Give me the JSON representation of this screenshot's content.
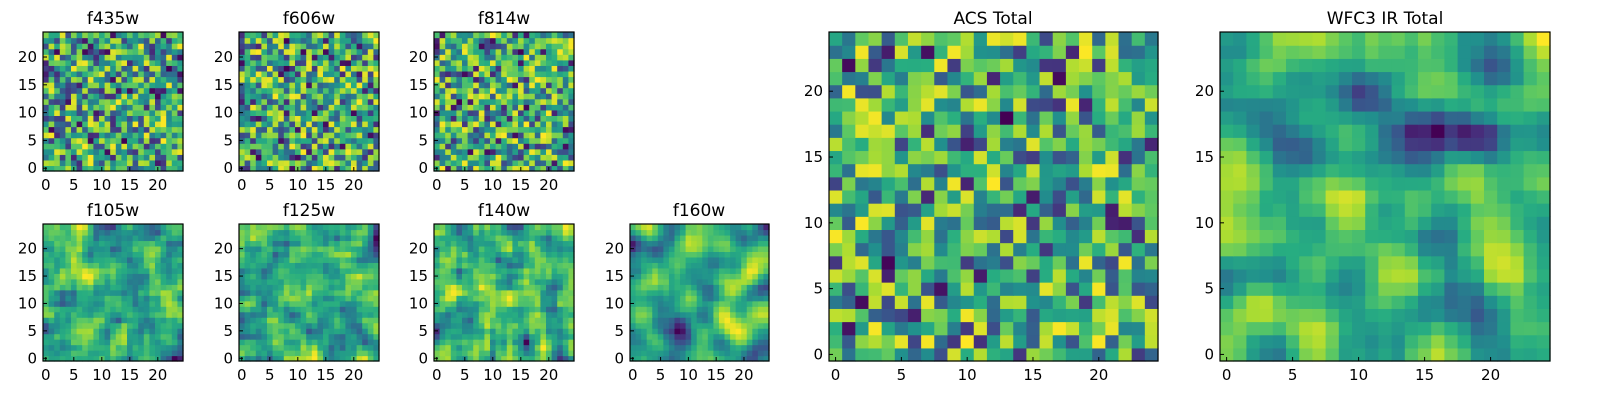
{
  "chart_data": [
    {
      "type": "heatmap",
      "title": "f435w",
      "grid_size": 25,
      "seed": 11,
      "smooth": 0,
      "xticks": [
        "0",
        "5",
        "10",
        "15",
        "20"
      ],
      "yticks": [
        "0",
        "5",
        "10",
        "15",
        "20"
      ],
      "colormap": "viridis"
    },
    {
      "type": "heatmap",
      "title": "f606w",
      "grid_size": 25,
      "seed": 23,
      "smooth": 0,
      "xticks": [
        "0",
        "5",
        "10",
        "15",
        "20"
      ],
      "yticks": [
        "0",
        "5",
        "10",
        "15",
        "20"
      ],
      "colormap": "viridis"
    },
    {
      "type": "heatmap",
      "title": "f814w",
      "grid_size": 25,
      "seed": 37,
      "smooth": 0,
      "xticks": [
        "0",
        "5",
        "10",
        "15",
        "20"
      ],
      "yticks": [
        "0",
        "5",
        "10",
        "15",
        "20"
      ],
      "colormap": "viridis"
    },
    {
      "type": "heatmap",
      "title": "f105w",
      "grid_size": 25,
      "seed": 41,
      "smooth": 1,
      "xticks": [
        "0",
        "5",
        "10",
        "15",
        "20"
      ],
      "yticks": [
        "0",
        "5",
        "10",
        "15",
        "20"
      ],
      "colormap": "viridis"
    },
    {
      "type": "heatmap",
      "title": "f125w",
      "grid_size": 25,
      "seed": 53,
      "smooth": 1,
      "xticks": [
        "0",
        "5",
        "10",
        "15",
        "20"
      ],
      "yticks": [
        "0",
        "5",
        "10",
        "15",
        "20"
      ],
      "colormap": "viridis"
    },
    {
      "type": "heatmap",
      "title": "f140w",
      "grid_size": 25,
      "seed": 67,
      "smooth": 1,
      "xticks": [
        "0",
        "5",
        "10",
        "15",
        "20"
      ],
      "yticks": [
        "0",
        "5",
        "10",
        "15",
        "20"
      ],
      "colormap": "viridis"
    },
    {
      "type": "heatmap",
      "title": "f160w",
      "grid_size": 25,
      "seed": 79,
      "smooth": 2,
      "xticks": [
        "0",
        "5",
        "10",
        "15",
        "20"
      ],
      "yticks": [
        "0",
        "5",
        "10",
        "15",
        "20"
      ],
      "colormap": "viridis"
    },
    {
      "type": "heatmap",
      "title": "ACS Total",
      "grid_size": 25,
      "seed": 83,
      "smooth": 0,
      "xticks": [
        "0",
        "5",
        "10",
        "15",
        "20"
      ],
      "yticks": [
        "0",
        "5",
        "10",
        "15",
        "20"
      ],
      "colormap": "viridis"
    },
    {
      "type": "heatmap",
      "title": "WFC3 IR Total",
      "grid_size": 25,
      "seed": 97,
      "smooth": 2,
      "xticks": [
        "0",
        "5",
        "10",
        "15",
        "20"
      ],
      "yticks": [
        "0",
        "5",
        "10",
        "15",
        "20"
      ],
      "colormap": "viridis"
    }
  ]
}
